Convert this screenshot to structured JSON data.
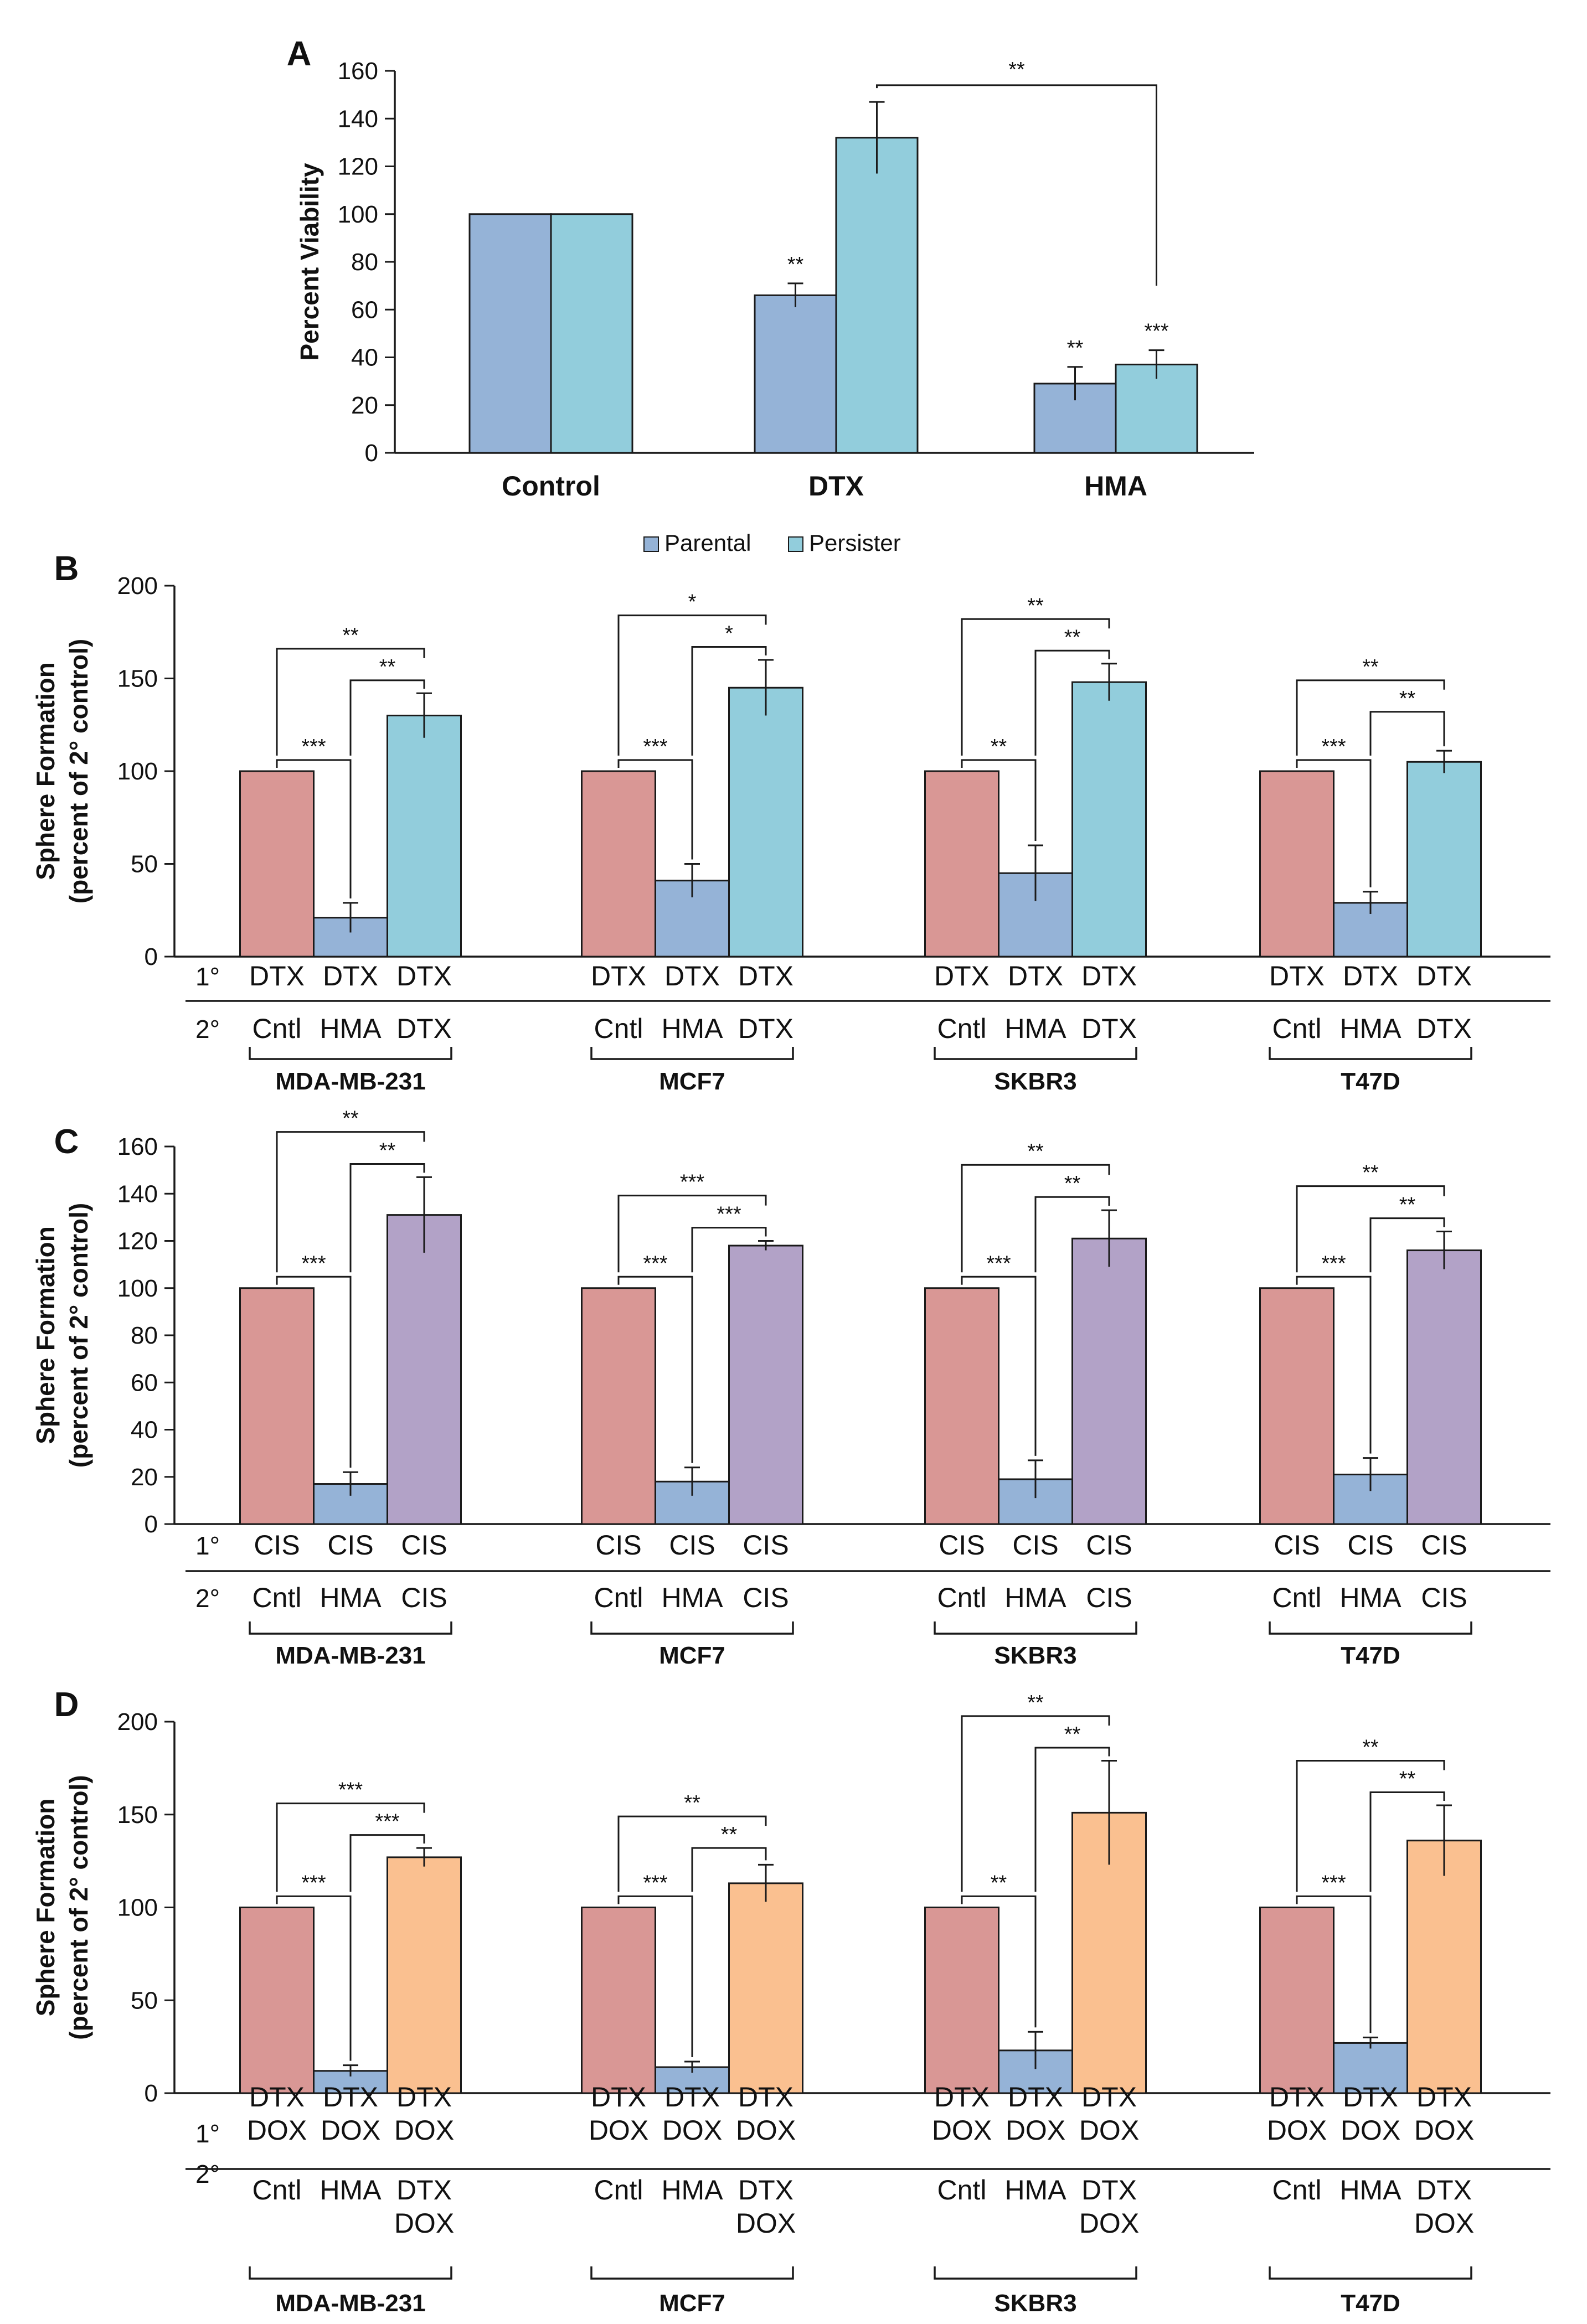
{
  "colors": {
    "parental": "#95b3d7",
    "persister": "#92cddc",
    "control": "#d99795",
    "cis": "#b2a2c7",
    "dox": "#fac090",
    "edge": "#1a1a1a"
  },
  "chart_data": [
    {
      "panel": "A",
      "type": "bar",
      "ylabel": "Percent Viability",
      "ylim": [
        0,
        160
      ],
      "yticks": [
        0,
        20,
        40,
        60,
        80,
        100,
        120,
        140,
        160
      ],
      "categories": [
        "Control",
        "DTX",
        "HMA"
      ],
      "series": [
        {
          "name": "Parental",
          "color": "#95b3d7",
          "values": [
            100,
            66,
            29
          ],
          "errors": [
            0,
            5,
            7
          ],
          "sig": [
            "",
            "**",
            "**"
          ]
        },
        {
          "name": "Persister",
          "color": "#92cddc",
          "values": [
            100,
            132,
            37
          ],
          "errors": [
            0,
            15,
            6
          ],
          "sig": [
            "",
            "",
            "***"
          ]
        }
      ],
      "brackets": [
        {
          "label": "**"
        }
      ],
      "legend": [
        "Parental",
        "Persister"
      ]
    },
    {
      "panel": "B",
      "type": "bar",
      "ylabel": [
        "Sphere Formation",
        "(percent of 2° control)"
      ],
      "ylim": [
        0,
        200
      ],
      "yticks": [
        0,
        50,
        100,
        150,
        200
      ],
      "row_labels": [
        "1°",
        "2°"
      ],
      "groups": [
        {
          "cell_line": "MDA-MB-231",
          "primary": [
            "DTX",
            "DTX",
            "DTX"
          ],
          "secondary": [
            "Cntl",
            "HMA",
            "DTX"
          ],
          "values": [
            100,
            21,
            130
          ],
          "errors": [
            0,
            8,
            12
          ],
          "colors": [
            "#d99795",
            "#95b3d7",
            "#92cddc"
          ],
          "sig_inner": "***",
          "sig_mid": "**",
          "sig_outer": "**"
        },
        {
          "cell_line": "MCF7",
          "primary": [
            "DTX",
            "DTX",
            "DTX"
          ],
          "secondary": [
            "Cntl",
            "HMA",
            "DTX"
          ],
          "values": [
            100,
            41,
            145
          ],
          "errors": [
            0,
            9,
            15
          ],
          "colors": [
            "#d99795",
            "#95b3d7",
            "#92cddc"
          ],
          "sig_inner": "***",
          "sig_mid": "*",
          "sig_outer": "*"
        },
        {
          "cell_line": "SKBR3",
          "primary": [
            "DTX",
            "DTX",
            "DTX"
          ],
          "secondary": [
            "Cntl",
            "HMA",
            "DTX"
          ],
          "values": [
            100,
            45,
            148
          ],
          "errors": [
            0,
            15,
            10
          ],
          "colors": [
            "#d99795",
            "#95b3d7",
            "#92cddc"
          ],
          "sig_inner": "**",
          "sig_mid": "**",
          "sig_outer": "**"
        },
        {
          "cell_line": "T47D",
          "primary": [
            "DTX",
            "DTX",
            "DTX"
          ],
          "secondary": [
            "Cntl",
            "HMA",
            "DTX"
          ],
          "values": [
            100,
            29,
            105
          ],
          "errors": [
            0,
            6,
            6
          ],
          "colors": [
            "#d99795",
            "#95b3d7",
            "#92cddc"
          ],
          "sig_inner": "***",
          "sig_mid": "**",
          "sig_outer": "**"
        }
      ]
    },
    {
      "panel": "C",
      "type": "bar",
      "ylabel": [
        "Sphere Formation",
        "(percent of 2° control)"
      ],
      "ylim": [
        0,
        160
      ],
      "yticks": [
        0,
        20,
        40,
        60,
        80,
        100,
        120,
        140,
        160
      ],
      "row_labels": [
        "1°",
        "2°"
      ],
      "groups": [
        {
          "cell_line": "MDA-MB-231",
          "primary": [
            "CIS",
            "CIS",
            "CIS"
          ],
          "secondary": [
            "Cntl",
            "HMA",
            "CIS"
          ],
          "values": [
            100,
            17,
            131
          ],
          "errors": [
            0,
            5,
            16
          ],
          "colors": [
            "#d99795",
            "#95b3d7",
            "#b2a2c7"
          ],
          "sig_inner": "***",
          "sig_mid": "**",
          "sig_outer": "**"
        },
        {
          "cell_line": "MCF7",
          "primary": [
            "CIS",
            "CIS",
            "CIS"
          ],
          "secondary": [
            "Cntl",
            "HMA",
            "CIS"
          ],
          "values": [
            100,
            18,
            118
          ],
          "errors": [
            0,
            6,
            2
          ],
          "colors": [
            "#d99795",
            "#95b3d7",
            "#b2a2c7"
          ],
          "sig_inner": "***",
          "sig_mid": "***",
          "sig_outer": "***"
        },
        {
          "cell_line": "SKBR3",
          "primary": [
            "CIS",
            "CIS",
            "CIS"
          ],
          "secondary": [
            "Cntl",
            "HMA",
            "CIS"
          ],
          "values": [
            100,
            19,
            121
          ],
          "errors": [
            0,
            8,
            12
          ],
          "colors": [
            "#d99795",
            "#95b3d7",
            "#b2a2c7"
          ],
          "sig_inner": "***",
          "sig_mid": "**",
          "sig_outer": "**"
        },
        {
          "cell_line": "T47D",
          "primary": [
            "CIS",
            "CIS",
            "CIS"
          ],
          "secondary": [
            "Cntl",
            "HMA",
            "CIS"
          ],
          "values": [
            100,
            21,
            116
          ],
          "errors": [
            0,
            7,
            8
          ],
          "colors": [
            "#d99795",
            "#95b3d7",
            "#b2a2c7"
          ],
          "sig_inner": "***",
          "sig_mid": "**",
          "sig_outer": "**"
        }
      ]
    },
    {
      "panel": "D",
      "type": "bar",
      "ylabel": [
        "Sphere Formation",
        "(percent of 2° control)"
      ],
      "ylim": [
        0,
        200
      ],
      "yticks": [
        0,
        50,
        100,
        150,
        200
      ],
      "row_labels": [
        "1°",
        "2°"
      ],
      "groups": [
        {
          "cell_line": "MDA-MB-231",
          "primary": [
            [
              "DTX",
              "DOX"
            ],
            [
              "DTX",
              "DOX"
            ],
            [
              "DTX",
              "DOX"
            ]
          ],
          "secondary": [
            [
              "Cntl"
            ],
            [
              "HMA"
            ],
            [
              "DTX",
              "DOX"
            ]
          ],
          "values": [
            100,
            12,
            127
          ],
          "errors": [
            0,
            3,
            5
          ],
          "colors": [
            "#d99795",
            "#95b3d7",
            "#fac090"
          ],
          "sig_inner": "***",
          "sig_mid": "***",
          "sig_outer": "***"
        },
        {
          "cell_line": "MCF7",
          "primary": [
            [
              "DTX",
              "DOX"
            ],
            [
              "DTX",
              "DOX"
            ],
            [
              "DTX",
              "DOX"
            ]
          ],
          "secondary": [
            [
              "Cntl"
            ],
            [
              "HMA"
            ],
            [
              "DTX",
              "DOX"
            ]
          ],
          "values": [
            100,
            14,
            113
          ],
          "errors": [
            0,
            3,
            10
          ],
          "colors": [
            "#d99795",
            "#95b3d7",
            "#fac090"
          ],
          "sig_inner": "***",
          "sig_mid": "**",
          "sig_outer": "**"
        },
        {
          "cell_line": "SKBR3",
          "primary": [
            [
              "DTX",
              "DOX"
            ],
            [
              "DTX",
              "DOX"
            ],
            [
              "DTX",
              "DOX"
            ]
          ],
          "secondary": [
            [
              "Cntl"
            ],
            [
              "HMA"
            ],
            [
              "DTX",
              "DOX"
            ]
          ],
          "values": [
            100,
            23,
            151
          ],
          "errors": [
            0,
            10,
            28
          ],
          "colors": [
            "#d99795",
            "#95b3d7",
            "#fac090"
          ],
          "sig_inner": "**",
          "sig_mid": "**",
          "sig_outer": "**"
        },
        {
          "cell_line": "T47D",
          "primary": [
            [
              "DTX",
              "DOX"
            ],
            [
              "DTX",
              "DOX"
            ],
            [
              "DTX",
              "DOX"
            ]
          ],
          "secondary": [
            [
              "Cntl"
            ],
            [
              "HMA"
            ],
            [
              "DTX",
              "DOX"
            ]
          ],
          "values": [
            100,
            27,
            136
          ],
          "errors": [
            0,
            3,
            19
          ],
          "colors": [
            "#d99795",
            "#95b3d7",
            "#fac090"
          ],
          "sig_inner": "***",
          "sig_mid": "**",
          "sig_outer": "**"
        }
      ]
    }
  ]
}
